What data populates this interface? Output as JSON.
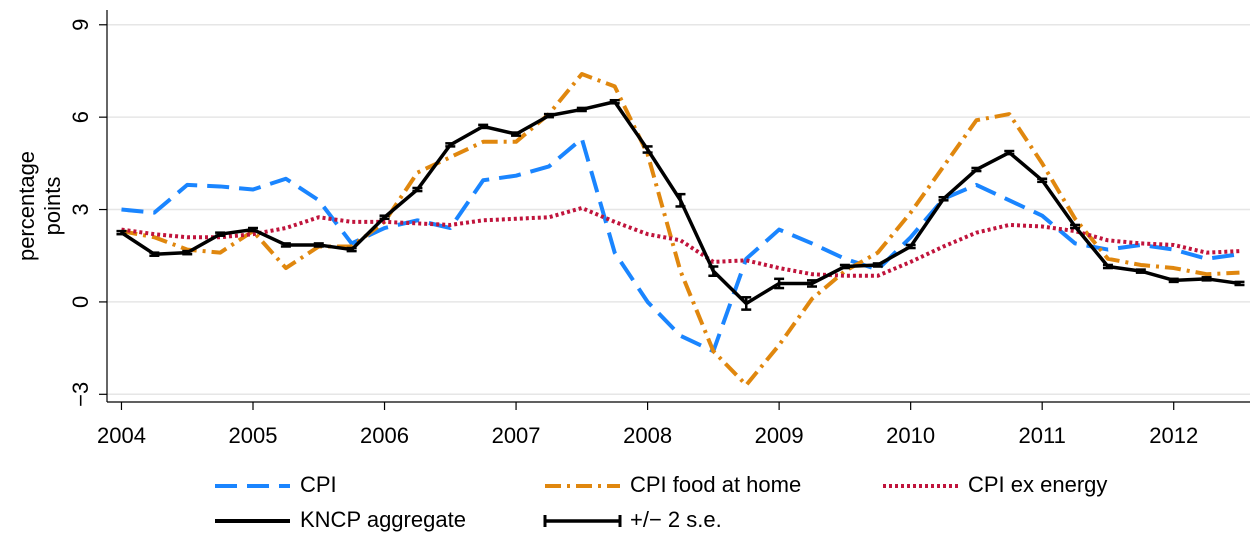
{
  "chart_data": {
    "type": "line",
    "ylabel": [
      "percentage",
      "points"
    ],
    "x": [
      2004,
      2004.25,
      2004.5,
      2004.75,
      2005,
      2005.25,
      2005.5,
      2005.75,
      2006,
      2006.25,
      2006.5,
      2006.75,
      2007,
      2007.25,
      2007.5,
      2007.75,
      2008,
      2008.25,
      2008.5,
      2008.75,
      2009,
      2009.25,
      2009.5,
      2009.75,
      2010,
      2010.25,
      2010.5,
      2010.75,
      2011,
      2011.25,
      2011.5,
      2011.75,
      2012,
      2012.25,
      2012.5
    ],
    "xlim": [
      2003.89,
      2012.58
    ],
    "xticks": [
      2004,
      2005,
      2006,
      2007,
      2008,
      2009,
      2010,
      2011,
      2012
    ],
    "ylim": [
      -3.25,
      9.48
    ],
    "yticks": [
      {
        "value": -3,
        "label": "−3"
      },
      0,
      3,
      6,
      9
    ],
    "grid": true,
    "series": [
      {
        "name": "CPI",
        "color": "#1a85ff",
        "style": "dashed",
        "values": [
          3.0,
          2.9,
          3.8,
          3.75,
          3.65,
          4.0,
          3.3,
          1.9,
          2.4,
          2.65,
          2.4,
          3.95,
          4.1,
          4.4,
          5.3,
          1.6,
          0.0,
          -1.1,
          -1.6,
          1.4,
          2.35,
          1.9,
          1.4,
          1.05,
          2.1,
          3.35,
          3.8,
          3.3,
          2.8,
          1.9,
          1.7,
          1.85,
          1.7,
          1.4,
          1.55
        ]
      },
      {
        "name": "CPI food at home",
        "color": "#e0870e",
        "style": "dashdot",
        "values": [
          2.3,
          2.1,
          1.7,
          1.6,
          2.3,
          1.1,
          1.8,
          1.8,
          2.6,
          4.2,
          4.7,
          5.2,
          5.2,
          6.1,
          7.4,
          7.0,
          4.8,
          1.0,
          -1.6,
          -2.7,
          -1.4,
          0.1,
          1.0,
          1.6,
          2.9,
          4.4,
          5.9,
          6.1,
          4.5,
          2.7,
          1.4,
          1.2,
          1.1,
          0.9,
          0.95
        ]
      },
      {
        "name": "CPI ex energy",
        "color": "#c0143c",
        "style": "dotted",
        "values": [
          2.35,
          2.2,
          2.1,
          2.1,
          2.2,
          2.4,
          2.75,
          2.6,
          2.6,
          2.55,
          2.5,
          2.65,
          2.7,
          2.75,
          3.05,
          2.6,
          2.2,
          2.0,
          1.3,
          1.35,
          1.1,
          0.9,
          0.85,
          0.85,
          1.3,
          1.8,
          2.25,
          2.5,
          2.45,
          2.3,
          2.0,
          1.9,
          1.85,
          1.6,
          1.65
        ]
      },
      {
        "name": "KNCP aggregate",
        "color": "#000000",
        "style": "solid",
        "values": [
          2.25,
          1.55,
          1.6,
          2.2,
          2.35,
          1.85,
          1.85,
          1.7,
          2.75,
          3.65,
          5.1,
          5.7,
          5.45,
          6.05,
          6.25,
          6.5,
          4.95,
          3.3,
          1.0,
          -0.05,
          0.6,
          0.6,
          1.15,
          1.2,
          1.8,
          3.35,
          4.3,
          4.85,
          3.95,
          2.45,
          1.15,
          1.0,
          0.7,
          0.75,
          0.6
        ]
      },
      {
        "name": "+/− 2 s.e.",
        "color": "#000000",
        "style": "errorbar",
        "values": [
          0.05,
          0.05,
          0.05,
          0.05,
          0.05,
          0.05,
          0.05,
          0.05,
          0.05,
          0.05,
          0.05,
          0.05,
          0.05,
          0.05,
          0.05,
          0.05,
          0.1,
          0.2,
          0.15,
          0.2,
          0.15,
          0.1,
          0.05,
          0.05,
          0.05,
          0.05,
          0.05,
          0.05,
          0.05,
          0.05,
          0.05,
          0.05,
          0.05,
          0.05,
          0.05
        ]
      }
    ]
  }
}
